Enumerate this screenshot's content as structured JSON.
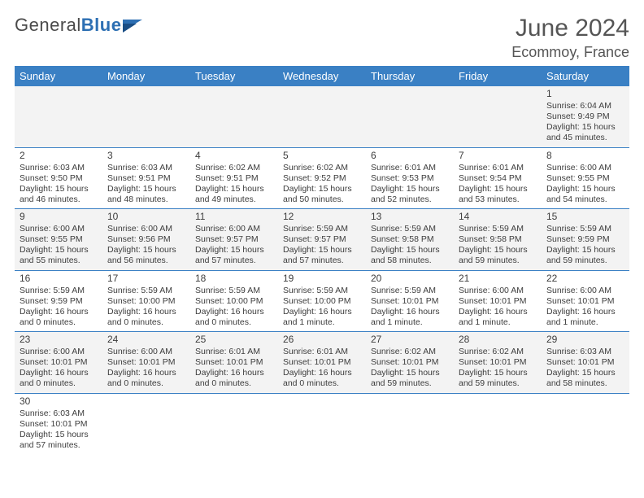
{
  "brand": {
    "part1": "General",
    "part2": "Blue"
  },
  "header": {
    "month_title": "June 2024",
    "location": "Ecommoy, France"
  },
  "day_headers": [
    "Sunday",
    "Monday",
    "Tuesday",
    "Wednesday",
    "Thursday",
    "Friday",
    "Saturday"
  ],
  "colors": {
    "header_bg": "#3a80c4",
    "header_text": "#ffffff",
    "row_odd_bg": "#f3f3f3",
    "row_even_bg": "#ffffff",
    "row_border": "#3a80c4",
    "text": "#3d3d3d",
    "logo_blue": "#2d6fb3"
  },
  "weeks": [
    {
      "parity": "odd",
      "days": [
        null,
        null,
        null,
        null,
        null,
        null,
        {
          "n": "1",
          "sunrise": "Sunrise: 6:04 AM",
          "sunset": "Sunset: 9:49 PM",
          "daylight": "Daylight: 15 hours and 45 minutes."
        }
      ]
    },
    {
      "parity": "even",
      "days": [
        {
          "n": "2",
          "sunrise": "Sunrise: 6:03 AM",
          "sunset": "Sunset: 9:50 PM",
          "daylight": "Daylight: 15 hours and 46 minutes."
        },
        {
          "n": "3",
          "sunrise": "Sunrise: 6:03 AM",
          "sunset": "Sunset: 9:51 PM",
          "daylight": "Daylight: 15 hours and 48 minutes."
        },
        {
          "n": "4",
          "sunrise": "Sunrise: 6:02 AM",
          "sunset": "Sunset: 9:51 PM",
          "daylight": "Daylight: 15 hours and 49 minutes."
        },
        {
          "n": "5",
          "sunrise": "Sunrise: 6:02 AM",
          "sunset": "Sunset: 9:52 PM",
          "daylight": "Daylight: 15 hours and 50 minutes."
        },
        {
          "n": "6",
          "sunrise": "Sunrise: 6:01 AM",
          "sunset": "Sunset: 9:53 PM",
          "daylight": "Daylight: 15 hours and 52 minutes."
        },
        {
          "n": "7",
          "sunrise": "Sunrise: 6:01 AM",
          "sunset": "Sunset: 9:54 PM",
          "daylight": "Daylight: 15 hours and 53 minutes."
        },
        {
          "n": "8",
          "sunrise": "Sunrise: 6:00 AM",
          "sunset": "Sunset: 9:55 PM",
          "daylight": "Daylight: 15 hours and 54 minutes."
        }
      ]
    },
    {
      "parity": "odd",
      "days": [
        {
          "n": "9",
          "sunrise": "Sunrise: 6:00 AM",
          "sunset": "Sunset: 9:55 PM",
          "daylight": "Daylight: 15 hours and 55 minutes."
        },
        {
          "n": "10",
          "sunrise": "Sunrise: 6:00 AM",
          "sunset": "Sunset: 9:56 PM",
          "daylight": "Daylight: 15 hours and 56 minutes."
        },
        {
          "n": "11",
          "sunrise": "Sunrise: 6:00 AM",
          "sunset": "Sunset: 9:57 PM",
          "daylight": "Daylight: 15 hours and 57 minutes."
        },
        {
          "n": "12",
          "sunrise": "Sunrise: 5:59 AM",
          "sunset": "Sunset: 9:57 PM",
          "daylight": "Daylight: 15 hours and 57 minutes."
        },
        {
          "n": "13",
          "sunrise": "Sunrise: 5:59 AM",
          "sunset": "Sunset: 9:58 PM",
          "daylight": "Daylight: 15 hours and 58 minutes."
        },
        {
          "n": "14",
          "sunrise": "Sunrise: 5:59 AM",
          "sunset": "Sunset: 9:58 PM",
          "daylight": "Daylight: 15 hours and 59 minutes."
        },
        {
          "n": "15",
          "sunrise": "Sunrise: 5:59 AM",
          "sunset": "Sunset: 9:59 PM",
          "daylight": "Daylight: 15 hours and 59 minutes."
        }
      ]
    },
    {
      "parity": "even",
      "days": [
        {
          "n": "16",
          "sunrise": "Sunrise: 5:59 AM",
          "sunset": "Sunset: 9:59 PM",
          "daylight": "Daylight: 16 hours and 0 minutes."
        },
        {
          "n": "17",
          "sunrise": "Sunrise: 5:59 AM",
          "sunset": "Sunset: 10:00 PM",
          "daylight": "Daylight: 16 hours and 0 minutes."
        },
        {
          "n": "18",
          "sunrise": "Sunrise: 5:59 AM",
          "sunset": "Sunset: 10:00 PM",
          "daylight": "Daylight: 16 hours and 0 minutes."
        },
        {
          "n": "19",
          "sunrise": "Sunrise: 5:59 AM",
          "sunset": "Sunset: 10:00 PM",
          "daylight": "Daylight: 16 hours and 1 minute."
        },
        {
          "n": "20",
          "sunrise": "Sunrise: 5:59 AM",
          "sunset": "Sunset: 10:01 PM",
          "daylight": "Daylight: 16 hours and 1 minute."
        },
        {
          "n": "21",
          "sunrise": "Sunrise: 6:00 AM",
          "sunset": "Sunset: 10:01 PM",
          "daylight": "Daylight: 16 hours and 1 minute."
        },
        {
          "n": "22",
          "sunrise": "Sunrise: 6:00 AM",
          "sunset": "Sunset: 10:01 PM",
          "daylight": "Daylight: 16 hours and 1 minute."
        }
      ]
    },
    {
      "parity": "odd",
      "days": [
        {
          "n": "23",
          "sunrise": "Sunrise: 6:00 AM",
          "sunset": "Sunset: 10:01 PM",
          "daylight": "Daylight: 16 hours and 0 minutes."
        },
        {
          "n": "24",
          "sunrise": "Sunrise: 6:00 AM",
          "sunset": "Sunset: 10:01 PM",
          "daylight": "Daylight: 16 hours and 0 minutes."
        },
        {
          "n": "25",
          "sunrise": "Sunrise: 6:01 AM",
          "sunset": "Sunset: 10:01 PM",
          "daylight": "Daylight: 16 hours and 0 minutes."
        },
        {
          "n": "26",
          "sunrise": "Sunrise: 6:01 AM",
          "sunset": "Sunset: 10:01 PM",
          "daylight": "Daylight: 16 hours and 0 minutes."
        },
        {
          "n": "27",
          "sunrise": "Sunrise: 6:02 AM",
          "sunset": "Sunset: 10:01 PM",
          "daylight": "Daylight: 15 hours and 59 minutes."
        },
        {
          "n": "28",
          "sunrise": "Sunrise: 6:02 AM",
          "sunset": "Sunset: 10:01 PM",
          "daylight": "Daylight: 15 hours and 59 minutes."
        },
        {
          "n": "29",
          "sunrise": "Sunrise: 6:03 AM",
          "sunset": "Sunset: 10:01 PM",
          "daylight": "Daylight: 15 hours and 58 minutes."
        }
      ]
    },
    {
      "parity": "even",
      "short": true,
      "days": [
        {
          "n": "30",
          "sunrise": "Sunrise: 6:03 AM",
          "sunset": "Sunset: 10:01 PM",
          "daylight": "Daylight: 15 hours and 57 minutes."
        },
        null,
        null,
        null,
        null,
        null,
        null
      ]
    }
  ]
}
